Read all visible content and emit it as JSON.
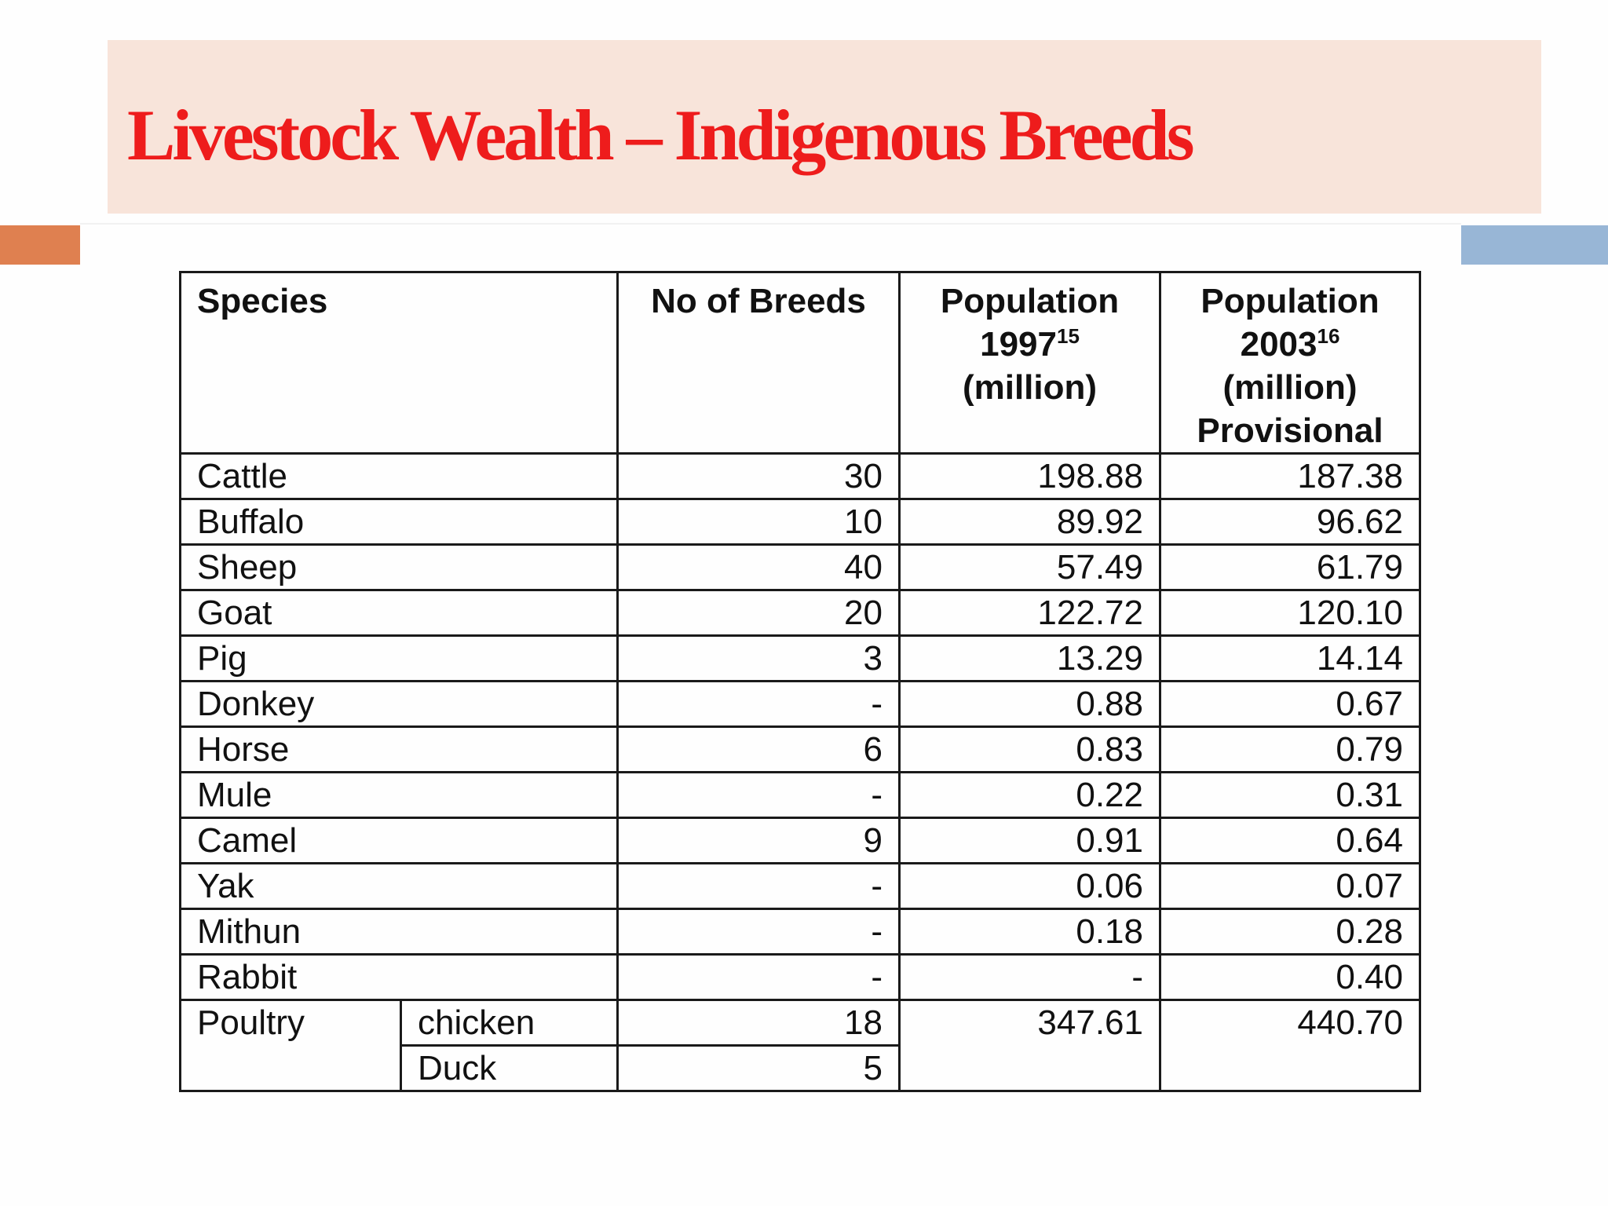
{
  "slide": {
    "title": "Livestock Wealth – Indigenous Breeds"
  },
  "table": {
    "headers": {
      "species": "Species",
      "breeds": "No of Breeds",
      "pop1997": {
        "label": "Population",
        "year": "1997",
        "ref": "15",
        "unit": "(million)"
      },
      "pop2003": {
        "label": "Population",
        "year": "2003",
        "ref": "16",
        "unit": "(million)",
        "note": "Provisional"
      }
    },
    "rows": [
      {
        "species": "Cattle",
        "breeds": "30",
        "pop1997": "198.88",
        "pop2003": "187.38"
      },
      {
        "species": "Buffalo",
        "breeds": "10",
        "pop1997": "89.92",
        "pop2003": "96.62"
      },
      {
        "species": "Sheep",
        "breeds": "40",
        "pop1997": "57.49",
        "pop2003": "61.79"
      },
      {
        "species": "Goat",
        "breeds": "20",
        "pop1997": "122.72",
        "pop2003": "120.10"
      },
      {
        "species": "Pig",
        "breeds": "3",
        "pop1997": "13.29",
        "pop2003": "14.14"
      },
      {
        "species": "Donkey",
        "breeds": "-",
        "pop1997": "0.88",
        "pop2003": "0.67"
      },
      {
        "species": "Horse",
        "breeds": "6",
        "pop1997": "0.83",
        "pop2003": "0.79"
      },
      {
        "species": "Mule",
        "breeds": "-",
        "pop1997": "0.22",
        "pop2003": "0.31"
      },
      {
        "species": "Camel",
        "breeds": "9",
        "pop1997": "0.91",
        "pop2003": "0.64"
      },
      {
        "species": "Yak",
        "breeds": "-",
        "pop1997": "0.06",
        "pop2003": "0.07"
      },
      {
        "species": "Mithun",
        "breeds": "-",
        "pop1997": "0.18",
        "pop2003": "0.28"
      },
      {
        "species": "Rabbit",
        "breeds": "-",
        "pop1997": "-",
        "pop2003": "0.40"
      }
    ],
    "poultry": {
      "species": "Poultry",
      "pop1997": "347.61",
      "pop2003": "440.70",
      "subtypes": [
        {
          "name": "chicken",
          "breeds": "18"
        },
        {
          "name": "Duck",
          "breeds": "5"
        }
      ]
    }
  }
}
